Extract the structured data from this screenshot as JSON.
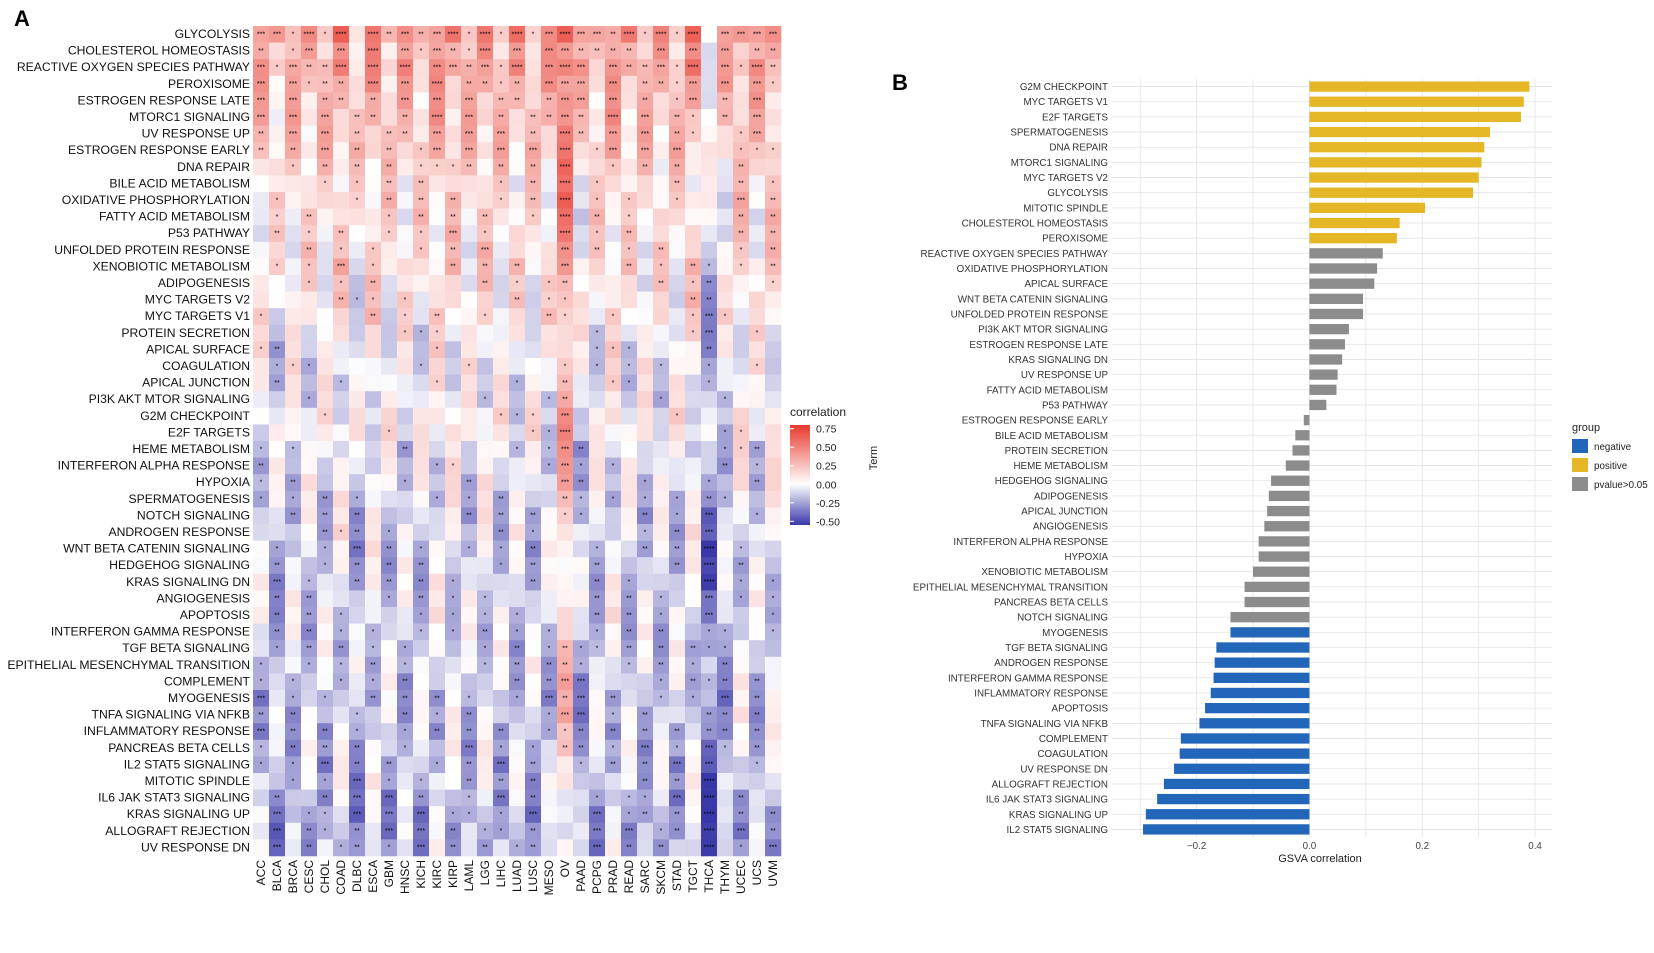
{
  "panel_a_label": "A",
  "panel_b_label": "B",
  "colors": {
    "heat_high": "#e8392e",
    "heat_mid": "#ffffff",
    "heat_low": "#3a38a8",
    "negative": "#2166b8",
    "positive": "#e5b625",
    "nonsig": "#8c8c8c",
    "grid": "#e3e3e3"
  },
  "chart_data": [
    {
      "type": "heatmap",
      "title": "",
      "legend_title": "correlation",
      "legend_ticks": [
        "0.75",
        "0.50",
        "0.25",
        "0.00",
        "-0.25",
        "-0.50"
      ],
      "legend_tick_values": [
        0.75,
        0.5,
        0.25,
        0.0,
        -0.25,
        -0.5
      ],
      "legend_range": [
        -0.55,
        0.8
      ],
      "rows": [
        "GLYCOLYSIS",
        "CHOLESTEROL HOMEOSTASIS",
        "REACTIVE OXYGEN SPECIES PATHWAY",
        "PEROXISOME",
        "ESTROGEN RESPONSE LATE",
        "MTORC1 SIGNALING",
        "UV RESPONSE UP",
        "ESTROGEN RESPONSE EARLY",
        "DNA REPAIR",
        "BILE ACID METABOLISM",
        "OXIDATIVE PHOSPHORYLATION",
        "FATTY ACID METABOLISM",
        "P53 PATHWAY",
        "UNFOLDED PROTEIN RESPONSE",
        "XENOBIOTIC METABOLISM",
        "ADIPOGENESIS",
        "MYC TARGETS V2",
        "MYC TARGETS V1",
        "PROTEIN SECRETION",
        "APICAL SURFACE",
        "COAGULATION",
        "APICAL JUNCTION",
        "PI3K AKT MTOR SIGNALING",
        "G2M CHECKPOINT",
        "E2F TARGETS",
        "HEME METABOLISM",
        "INTERFERON ALPHA RESPONSE",
        "HYPOXIA",
        "SPERMATOGENESIS",
        "NOTCH SIGNALING",
        "ANDROGEN RESPONSE",
        "WNT BETA CATENIN SIGNALING",
        "HEDGEHOG SIGNALING",
        "KRAS SIGNALING DN",
        "ANGIOGENESIS",
        "APOPTOSIS",
        "INTERFERON GAMMA RESPONSE",
        "TGF BETA SIGNALING",
        "EPITHELIAL MESENCHYMAL TRANSITION",
        "COMPLEMENT",
        "MYOGENESIS",
        "TNFA SIGNALING VIA NFKB",
        "INFLAMMATORY RESPONSE",
        "PANCREAS BETA CELLS",
        "IL2 STAT5 SIGNALING",
        "MITOTIC SPINDLE",
        "IL6 JAK STAT3 SIGNALING",
        "KRAS SIGNALING UP",
        "ALLOGRAFT REJECTION",
        "UV RESPONSE DN"
      ],
      "columns": [
        "ACC",
        "BLCA",
        "BRCA",
        "CESC",
        "CHOL",
        "COAD",
        "DLBC",
        "ESCA",
        "GBM",
        "HNSC",
        "KICH",
        "KIRC",
        "KIRP",
        "LAML",
        "LGG",
        "LIHC",
        "LUAD",
        "LUSC",
        "MESO",
        "OV",
        "PAAD",
        "PCPG",
        "PRAD",
        "READ",
        "SARC",
        "SKCM",
        "STAD",
        "TGCT",
        "THCA",
        "THYM",
        "UCEC",
        "UCS",
        "UVM"
      ],
      "row_bias": [
        0.35,
        0.25,
        0.3,
        0.25,
        0.22,
        0.22,
        0.2,
        0.2,
        0.15,
        0.1,
        0.12,
        0.1,
        0.08,
        0.08,
        0.1,
        0.05,
        0.05,
        0.05,
        0.0,
        -0.02,
        -0.02,
        -0.03,
        -0.03,
        0.02,
        0.02,
        -0.05,
        -0.05,
        -0.05,
        -0.08,
        -0.1,
        -0.08,
        -0.12,
        -0.12,
        -0.12,
        -0.1,
        -0.1,
        -0.12,
        -0.12,
        -0.1,
        -0.12,
        -0.15,
        -0.12,
        -0.15,
        -0.12,
        -0.15,
        -0.12,
        -0.18,
        -0.2,
        -0.2,
        -0.18
      ],
      "col_bias": [
        0.0,
        -0.05,
        0.0,
        0.0,
        0.0,
        0.05,
        -0.05,
        0.05,
        0.0,
        0.0,
        0.0,
        0.05,
        0.05,
        0.0,
        0.05,
        0.0,
        0.0,
        0.0,
        0.0,
        0.3,
        -0.05,
        0.0,
        0.05,
        0.0,
        0.0,
        0.0,
        0.0,
        0.05,
        -0.2,
        -0.05,
        0.05,
        0.0,
        0.05
      ]
    },
    {
      "type": "bar",
      "orientation": "horizontal",
      "xlabel": "GSVA correlation",
      "ylabel": "Term",
      "xlim": [
        -0.35,
        0.43
      ],
      "x_ticks": [
        -0.2,
        0.0,
        0.2,
        0.4
      ],
      "x_tick_labels": [
        "−0.2",
        "0.0",
        "0.2",
        "0.4"
      ],
      "legend_title": "group",
      "legend": [
        {
          "key": "negative",
          "label": "negative"
        },
        {
          "key": "positive",
          "label": "positive"
        },
        {
          "key": "nonsig",
          "label": "pvalue>0.05"
        }
      ],
      "categories": [
        "G2M CHECKPOINT",
        "MYC TARGETS V1",
        "E2F TARGETS",
        "SPERMATOGENESIS",
        "DNA REPAIR",
        "MTORC1 SIGNALING",
        "MYC TARGETS V2",
        "GLYCOLYSIS",
        "MITOTIC SPINDLE",
        "CHOLESTEROL HOMEOSTASIS",
        "PEROXISOME",
        "REACTIVE OXYGEN SPECIES PATHWAY",
        "OXIDATIVE PHOSPHORYLATION",
        "APICAL SURFACE",
        "WNT BETA CATENIN SIGNALING",
        "UNFOLDED PROTEIN RESPONSE",
        "PI3K AKT MTOR SIGNALING",
        "ESTROGEN RESPONSE LATE",
        "KRAS SIGNALING DN",
        "UV RESPONSE UP",
        "FATTY ACID METABOLISM",
        "P53 PATHWAY",
        "ESTROGEN RESPONSE EARLY",
        "BILE ACID METABOLISM",
        "PROTEIN SECRETION",
        "HEME METABOLISM",
        "HEDGEHOG SIGNALING",
        "ADIPOGENESIS",
        "APICAL JUNCTION",
        "ANGIOGENESIS",
        "INTERFERON ALPHA RESPONSE",
        "HYPOXIA",
        "XENOBIOTIC METABOLISM",
        "EPITHELIAL MESENCHYMAL TRANSITION",
        "PANCREAS BETA CELLS",
        "NOTCH SIGNALING",
        "MYOGENESIS",
        "TGF BETA SIGNALING",
        "ANDROGEN RESPONSE",
        "INTERFERON GAMMA RESPONSE",
        "INFLAMMATORY RESPONSE",
        "APOPTOSIS",
        "TNFA SIGNALING VIA NFKB",
        "COMPLEMENT",
        "COAGULATION",
        "UV RESPONSE DN",
        "ALLOGRAFT REJECTION",
        "IL6 JAK STAT3 SIGNALING",
        "KRAS SIGNALING UP",
        "IL2 STAT5 SIGNALING"
      ],
      "values": [
        0.39,
        0.38,
        0.375,
        0.32,
        0.31,
        0.305,
        0.3,
        0.29,
        0.205,
        0.16,
        0.155,
        0.13,
        0.12,
        0.115,
        0.095,
        0.095,
        0.07,
        0.063,
        0.058,
        0.05,
        0.048,
        0.03,
        -0.01,
        -0.025,
        -0.03,
        -0.042,
        -0.068,
        -0.072,
        -0.075,
        -0.08,
        -0.09,
        -0.09,
        -0.1,
        -0.115,
        -0.115,
        -0.14,
        -0.14,
        -0.165,
        -0.168,
        -0.17,
        -0.175,
        -0.185,
        -0.195,
        -0.228,
        -0.23,
        -0.24,
        -0.258,
        -0.27,
        -0.29,
        -0.295
      ],
      "groups": [
        "positive",
        "positive",
        "positive",
        "positive",
        "positive",
        "positive",
        "positive",
        "positive",
        "positive",
        "positive",
        "positive",
        "nonsig",
        "nonsig",
        "nonsig",
        "nonsig",
        "nonsig",
        "nonsig",
        "nonsig",
        "nonsig",
        "nonsig",
        "nonsig",
        "nonsig",
        "nonsig",
        "nonsig",
        "nonsig",
        "nonsig",
        "nonsig",
        "nonsig",
        "nonsig",
        "nonsig",
        "nonsig",
        "nonsig",
        "nonsig",
        "nonsig",
        "nonsig",
        "nonsig",
        "negative",
        "negative",
        "negative",
        "negative",
        "negative",
        "negative",
        "negative",
        "negative",
        "negative",
        "negative",
        "negative",
        "negative",
        "negative",
        "negative"
      ]
    }
  ]
}
